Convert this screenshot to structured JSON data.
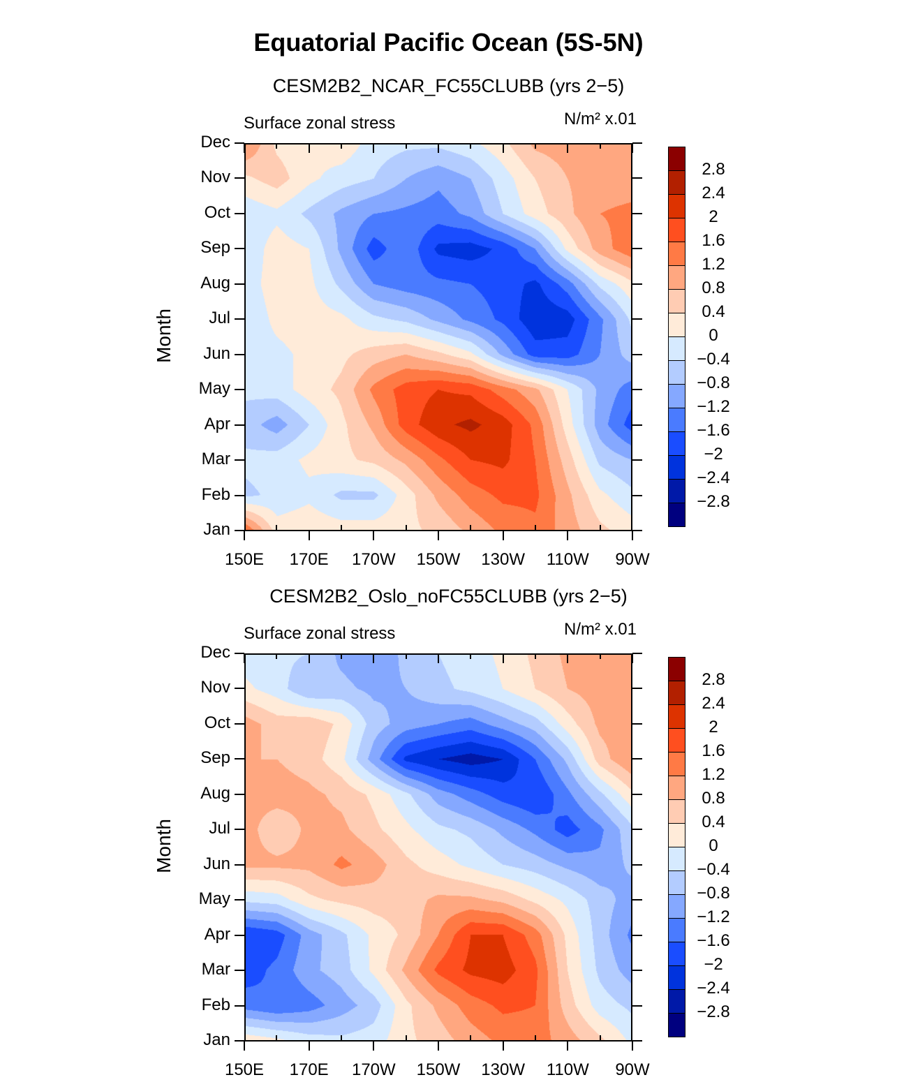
{
  "title": "Equatorial Pacific Ocean (5S-5N)",
  "chart_data": {
    "type": "heatmap",
    "title": "Equatorial Pacific Ocean (5S-5N)",
    "x_ticks": [
      "150E",
      "170E",
      "170W",
      "150W",
      "130W",
      "110W",
      "90W"
    ],
    "y_ticks": [
      "Jan",
      "Feb",
      "Mar",
      "Apr",
      "May",
      "Jun",
      "Jul",
      "Aug",
      "Sep",
      "Oct",
      "Nov",
      "Dec"
    ],
    "x_lon_deg_east": [
      150,
      160,
      170,
      180,
      190,
      200,
      210,
      220,
      230,
      240,
      250,
      260,
      270
    ],
    "ylabel": "Month",
    "levels": [
      -2.8,
      -2.4,
      -2,
      -1.6,
      -1.2,
      -0.8,
      -0.4,
      0,
      0.4,
      0.8,
      1.2,
      1.6,
      2,
      2.4,
      2.8
    ],
    "level_labels": [
      "2.8",
      "2.4",
      "2",
      "1.6",
      "1.2",
      "0.8",
      "0.4",
      "0",
      "−0.4",
      "−0.8",
      "−1.2",
      "−1.6",
      "−2",
      "−2.4",
      "−2.8"
    ],
    "colors": [
      "#00007f",
      "#0019a8",
      "#0033dd",
      "#1a4dff",
      "#4a7bff",
      "#85a8ff",
      "#b3ccff",
      "#d6eaff",
      "#ffebd9",
      "#ffccb3",
      "#ffa780",
      "#ff7a45",
      "#ff4f1f",
      "#dd3300",
      "#b22000",
      "#8b0000"
    ],
    "panels": [
      {
        "subtitle": "CESM2B2_NCAR_FC55CLUBB (yrs 2−5)",
        "left_label": "Surface zonal stress",
        "units": "N/m² x.01",
        "values": [
          [
            1.6,
            0.2,
            0.3,
            0.2,
            0.2,
            0.3,
            0.5,
            0.9,
            1.3,
            1.5,
            1.0,
            0.5,
            0.2
          ],
          [
            -0.5,
            -0.3,
            -0.1,
            -0.5,
            -0.5,
            0.2,
            0.9,
            1.4,
            1.7,
            1.7,
            0.9,
            0.1,
            -0.3
          ],
          [
            -0.3,
            -0.2,
            0.1,
            0.3,
            0.5,
            0.9,
            1.5,
            2.0,
            2.1,
            1.6,
            0.6,
            -0.5,
            -0.8
          ],
          [
            -0.6,
            -1.0,
            -0.4,
            0.3,
            0.9,
            1.8,
            2.3,
            2.5,
            2.2,
            1.5,
            0.2,
            -1.0,
            -1.8
          ],
          [
            -0.3,
            -0.2,
            0.2,
            0.5,
            1.3,
            1.8,
            2.0,
            1.9,
            1.4,
            0.9,
            0.0,
            -0.9,
            -1.4
          ],
          [
            -0.2,
            -0.1,
            0.1,
            0.3,
            0.6,
            0.8,
            0.5,
            0.1,
            -0.9,
            -1.8,
            -1.8,
            -1.2,
            -0.6
          ],
          [
            -0.3,
            0.1,
            0.2,
            0.1,
            -0.3,
            -0.5,
            -0.9,
            -1.3,
            -1.7,
            -2.3,
            -2.2,
            -1.3,
            -0.3
          ],
          [
            -0.2,
            0.2,
            0.1,
            -0.5,
            -1.2,
            -1.4,
            -1.5,
            -1.6,
            -1.8,
            -2.1,
            -1.4,
            -0.3,
            0.3
          ],
          [
            -0.3,
            0.2,
            0.0,
            -0.9,
            -1.8,
            -1.3,
            -2.1,
            -2.2,
            -1.9,
            -1.2,
            0.1,
            1.0,
            1.5
          ],
          [
            -0.3,
            -0.1,
            -0.5,
            -0.9,
            -1.2,
            -1.3,
            -1.4,
            -1.1,
            -0.4,
            0.2,
            0.7,
            1.2,
            1.3
          ],
          [
            0.3,
            0.6,
            0.1,
            -0.2,
            -0.4,
            -0.8,
            -1.1,
            -0.8,
            -0.2,
            0.4,
            0.8,
            1.0,
            1.0
          ],
          [
            1.3,
            0.3,
            0.1,
            0.3,
            -0.2,
            -0.3,
            -0.3,
            -0.1,
            0.3,
            0.9,
            1.0,
            1.0,
            1.0
          ]
        ]
      },
      {
        "subtitle": "CESM2B2_Oslo_noFC55CLUBB (yrs 2−5)",
        "left_label": "Surface zonal stress",
        "units": "N/m² x.01",
        "values": [
          [
            0.3,
            0.1,
            -0.2,
            -0.3,
            -0.2,
            0.3,
            0.6,
            1.0,
            1.3,
            1.4,
            1.0,
            0.5,
            -0.1
          ],
          [
            -1.4,
            -1.6,
            -1.4,
            -1.0,
            -0.6,
            0.3,
            0.9,
            1.4,
            1.7,
            1.6,
            0.6,
            -0.2,
            -0.5
          ],
          [
            -1.8,
            -1.5,
            -0.9,
            -0.6,
            0.1,
            0.9,
            1.7,
            2.1,
            2.2,
            1.7,
            0.4,
            -0.5,
            -1.0
          ],
          [
            -2.0,
            -1.8,
            -1.0,
            -0.5,
            0.1,
            0.5,
            1.2,
            2.0,
            2.0,
            1.4,
            0.3,
            -0.6,
            -1.3
          ],
          [
            -0.3,
            -0.2,
            0.3,
            0.5,
            0.6,
            0.6,
            0.9,
            0.9,
            0.7,
            0.3,
            -0.1,
            -0.6,
            -1.0
          ],
          [
            0.9,
            0.9,
            0.9,
            1.3,
            1.0,
            0.5,
            0.2,
            -0.1,
            -0.4,
            -0.6,
            -0.9,
            -1.1,
            -0.7
          ],
          [
            1.0,
            0.5,
            0.9,
            0.9,
            0.5,
            0.1,
            -0.3,
            -0.5,
            -0.9,
            -1.3,
            -1.8,
            -1.3,
            -0.5
          ],
          [
            0.9,
            1.0,
            0.9,
            0.7,
            0.3,
            -0.3,
            -1.0,
            -1.4,
            -1.8,
            -2.0,
            -1.3,
            -0.5,
            0.3
          ],
          [
            0.8,
            0.8,
            0.6,
            0.1,
            -1.0,
            -2.1,
            -2.4,
            -2.6,
            -2.4,
            -1.6,
            -0.7,
            0.6,
            1.2
          ],
          [
            1.0,
            0.6,
            0.7,
            0.3,
            -0.6,
            -1.0,
            -1.2,
            -1.4,
            -1.0,
            -0.6,
            0.2,
            0.9,
            1.0
          ],
          [
            0.1,
            -0.2,
            -0.8,
            -0.7,
            -0.9,
            -0.8,
            -0.5,
            -0.3,
            0.0,
            0.4,
            0.8,
            1.0,
            1.0
          ],
          [
            -0.2,
            -0.3,
            -0.4,
            -0.9,
            -1.1,
            -0.7,
            -0.4,
            -0.2,
            0.1,
            0.5,
            0.9,
            0.9,
            0.8
          ]
        ]
      }
    ]
  }
}
